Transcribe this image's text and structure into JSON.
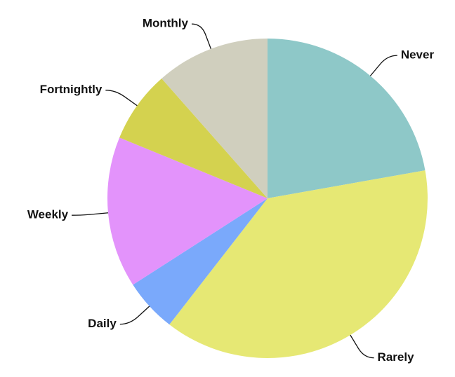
{
  "chart_data": {
    "type": "pie",
    "categories": [
      "Never",
      "Rarely",
      "Daily",
      "Weekly",
      "Fortnightly",
      "Monthly"
    ],
    "values": [
      22.2,
      38.3,
      5.4,
      15.3,
      7.3,
      11.5
    ],
    "colors": [
      "#8ec8c8",
      "#e6e874",
      "#7aa9fb",
      "#e393fb",
      "#d4d24f",
      "#d0cfbe"
    ]
  }
}
